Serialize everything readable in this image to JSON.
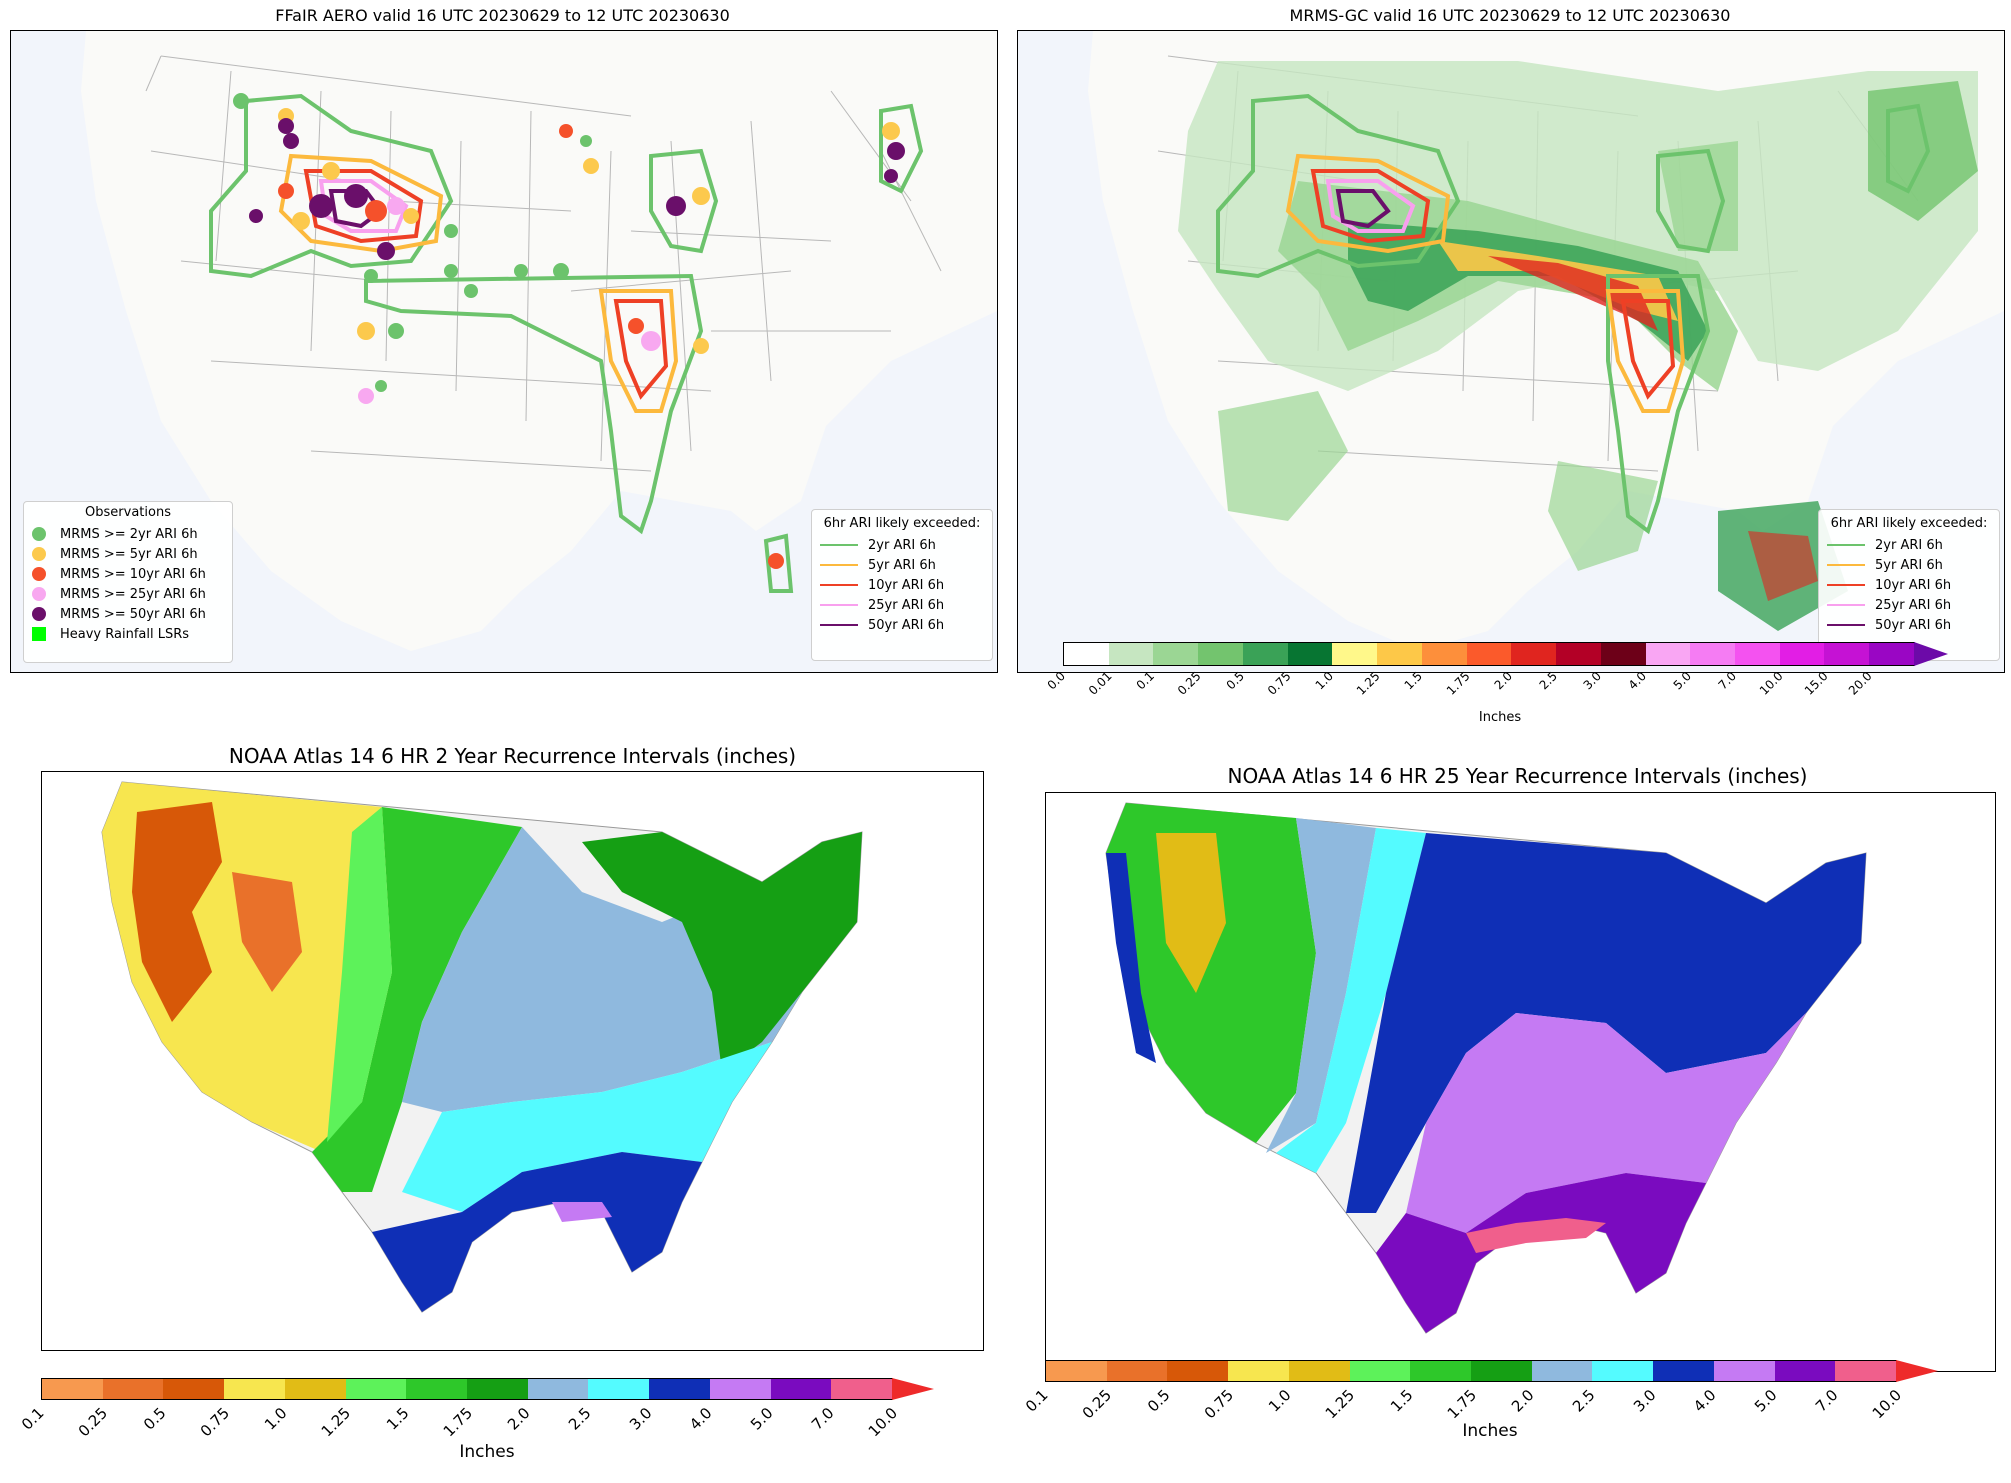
{
  "panels": {
    "top_left": {
      "title": "FFaIR AERO valid 16 UTC 20230629 to 12 UTC 20230630",
      "obs_legend": {
        "title": "Observations",
        "items": [
          {
            "label": "MRMS >= 2yr ARI 6h",
            "color": "#6cc36c"
          },
          {
            "label": "MRMS >= 5yr ARI 6h",
            "color": "#fcc94d"
          },
          {
            "label": "MRMS >= 10yr ARI 6h",
            "color": "#f5512b"
          },
          {
            "label": "MRMS >= 25yr ARI 6h",
            "color": "#f8a8f0"
          },
          {
            "label": "MRMS >= 50yr ARI 6h",
            "color": "#6a0f6a"
          },
          {
            "label": "Heavy Rainfall LSRs",
            "color": "#00ff00"
          }
        ]
      },
      "ari_legend": {
        "title": "6hr ARI likely exceeded:",
        "items": [
          {
            "label": "2yr ARI 6h",
            "color": "#6cc36c"
          },
          {
            "label": "5yr ARI 6h",
            "color": "#fcb93d"
          },
          {
            "label": "10yr ARI 6h",
            "color": "#ee4025"
          },
          {
            "label": "25yr ARI 6h",
            "color": "#f8a0ee"
          },
          {
            "label": "50yr ARI 6h",
            "color": "#6a0f6a"
          }
        ]
      }
    },
    "top_right": {
      "title": "MRMS-GC valid 16 UTC 20230629 to 12 UTC 20230630",
      "ari_legend": {
        "title": "6hr ARI likely exceeded:",
        "items": [
          {
            "label": "2yr ARI 6h",
            "color": "#6cc36c"
          },
          {
            "label": "5yr ARI 6h",
            "color": "#fcb93d"
          },
          {
            "label": "10yr ARI 6h",
            "color": "#ee4025"
          },
          {
            "label": "25yr ARI 6h",
            "color": "#f8a0ee"
          },
          {
            "label": "50yr ARI 6h",
            "color": "#6a0f6a"
          }
        ]
      },
      "colorbar": {
        "label": "Inches",
        "ticks": [
          "0.0",
          "0.01",
          "0.1",
          "0.25",
          "0.5",
          "0.75",
          "1.0",
          "1.25",
          "1.5",
          "1.75",
          "2.0",
          "2.5",
          "3.0",
          "4.0",
          "5.0",
          "7.0",
          "10.0",
          "15.0",
          "20.0"
        ],
        "colors": [
          "#ffffff",
          "#c6e6c1",
          "#9bd694",
          "#73c46e",
          "#3aa257",
          "#077532",
          "#fff88a",
          "#fdc848",
          "#fd8f3b",
          "#fb5a2b",
          "#e0251f",
          "#b30026",
          "#6d0018",
          "#f9a6f3",
          "#f57cf3",
          "#f452f0",
          "#e21ee5",
          "#c512d4",
          "#9a06c4"
        ],
        "arrow_color": "#6c0aa8"
      }
    },
    "bottom_left": {
      "title": "NOAA Atlas 14 6 HR 2 Year Recurrence Intervals (inches)",
      "colorbar": {
        "label": "Inches",
        "ticks": [
          "0.1",
          "0.25",
          "0.5",
          "0.75",
          "1.0",
          "1.25",
          "1.5",
          "1.75",
          "2.0",
          "2.5",
          "3.0",
          "4.0",
          "5.0",
          "7.0",
          "10.0"
        ],
        "colors": [
          "#f7994f",
          "#e9712a",
          "#d75808",
          "#f7e64f",
          "#e1bc16",
          "#5df25a",
          "#2ec82a",
          "#159f14",
          "#8fb9de",
          "#54fbff",
          "#0f2fb6",
          "#c57af3",
          "#7a0bbf",
          "#f05f8c"
        ],
        "arrow_color": "#ee2a2a"
      }
    },
    "bottom_right": {
      "title": "NOAA Atlas 14 6 HR 25 Year Recurrence Intervals (inches)",
      "colorbar": {
        "label": "Inches",
        "ticks": [
          "0.1",
          "0.25",
          "0.5",
          "0.75",
          "1.0",
          "1.25",
          "1.5",
          "1.75",
          "2.0",
          "2.5",
          "3.0",
          "4.0",
          "5.0",
          "7.0",
          "10.0"
        ],
        "colors": [
          "#f7994f",
          "#e9712a",
          "#d75808",
          "#f7e64f",
          "#e1bc16",
          "#5df25a",
          "#2ec82a",
          "#159f14",
          "#8fb9de",
          "#54fbff",
          "#0f2fb6",
          "#c57af3",
          "#7a0bbf",
          "#f05f8c"
        ],
        "arrow_color": "#ee2a2a"
      }
    }
  }
}
